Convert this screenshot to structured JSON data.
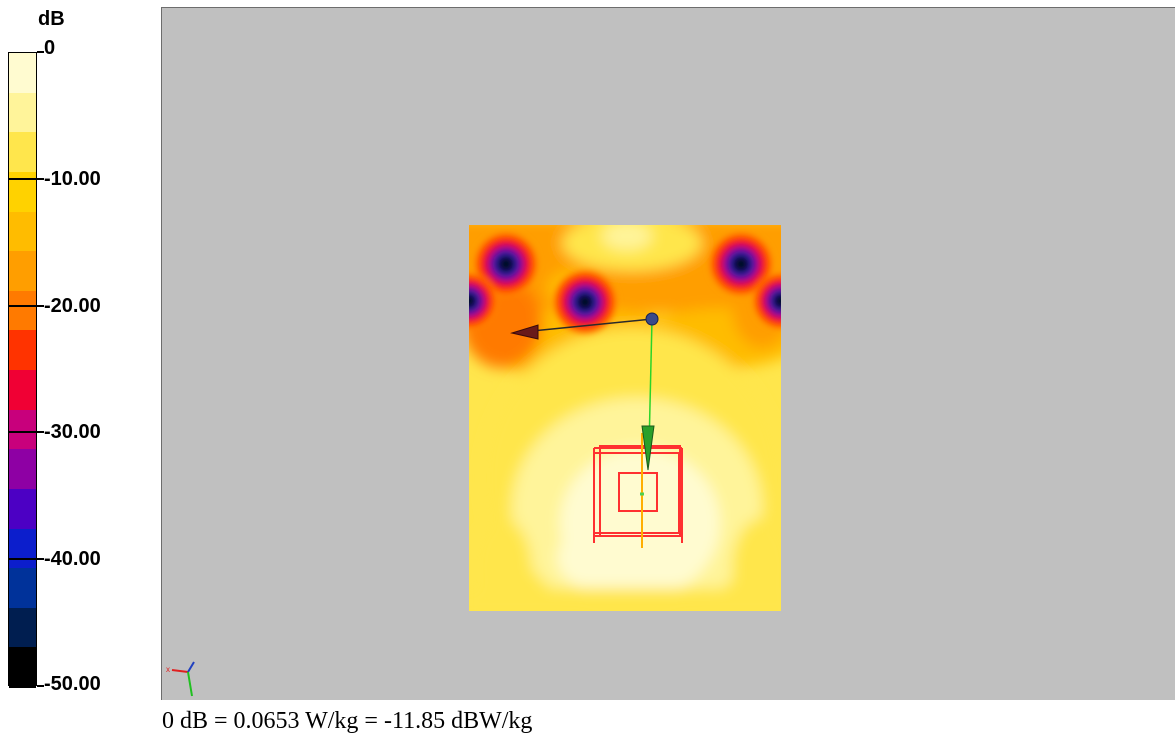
{
  "legend": {
    "unit": "dB",
    "ticks": [
      {
        "value": 0,
        "label": "0"
      },
      {
        "value": -10,
        "label": "-10.00"
      },
      {
        "value": -20,
        "label": "-20.00"
      },
      {
        "value": -30,
        "label": "-30.00"
      },
      {
        "value": -40,
        "label": "-40.00"
      },
      {
        "value": -50,
        "label": "-50.00"
      }
    ],
    "range": [
      -50,
      0
    ],
    "bands": [
      "#fffbd0",
      "#fff49a",
      "#ffe64c",
      "#ffd200",
      "#ffbc00",
      "#ff9e00",
      "#ff7a00",
      "#ff3300",
      "#f00034",
      "#c8007c",
      "#8e00a4",
      "#4c00c4",
      "#0c1ecc",
      "#00329a",
      "#001e50",
      "#000000"
    ]
  },
  "caption": "0 dB = 0.0653 W/kg = -11.85 dBW/kg",
  "colors": {
    "viewport_bg": "#c0c0c0",
    "coil_outline": "#ff3030",
    "probe_axis_x": "#6a1a1a",
    "probe_axis_y": "#2ad42a"
  }
}
